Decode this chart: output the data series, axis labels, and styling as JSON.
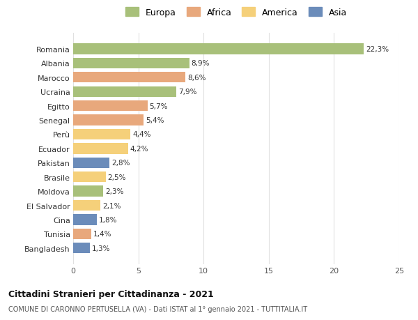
{
  "countries": [
    "Romania",
    "Albania",
    "Marocco",
    "Ucraina",
    "Egitto",
    "Senegal",
    "Perù",
    "Ecuador",
    "Pakistan",
    "Brasile",
    "Moldova",
    "El Salvador",
    "Cina",
    "Tunisia",
    "Bangladesh"
  ],
  "values": [
    22.3,
    8.9,
    8.6,
    7.9,
    5.7,
    5.4,
    4.4,
    4.2,
    2.8,
    2.5,
    2.3,
    2.1,
    1.8,
    1.4,
    1.3
  ],
  "labels": [
    "22,3%",
    "8,9%",
    "8,6%",
    "7,9%",
    "5,7%",
    "5,4%",
    "4,4%",
    "4,2%",
    "2,8%",
    "2,5%",
    "2,3%",
    "2,1%",
    "1,8%",
    "1,4%",
    "1,3%"
  ],
  "colors": [
    "#a8c07a",
    "#a8c07a",
    "#e8a87c",
    "#a8c07a",
    "#e8a87c",
    "#e8a87c",
    "#f5d07a",
    "#f5d07a",
    "#6b8cba",
    "#f5d07a",
    "#a8c07a",
    "#f5d07a",
    "#6b8cba",
    "#e8a87c",
    "#6b8cba"
  ],
  "continent_labels": [
    "Europa",
    "Africa",
    "America",
    "Asia"
  ],
  "continent_colors": [
    "#a8c07a",
    "#e8a87c",
    "#f5d07a",
    "#6b8cba"
  ],
  "title_main": "Cittadini Stranieri per Cittadinanza - 2021",
  "title_sub": "COMUNE DI CARONNO PERTUSELLA (VA) - Dati ISTAT al 1° gennaio 2021 - TUTTITALIA.IT",
  "xlim": [
    0,
    25
  ],
  "xticks": [
    0,
    5,
    10,
    15,
    20,
    25
  ],
  "background_color": "#ffffff",
  "grid_color": "#e0e0e0",
  "bar_height": 0.75
}
